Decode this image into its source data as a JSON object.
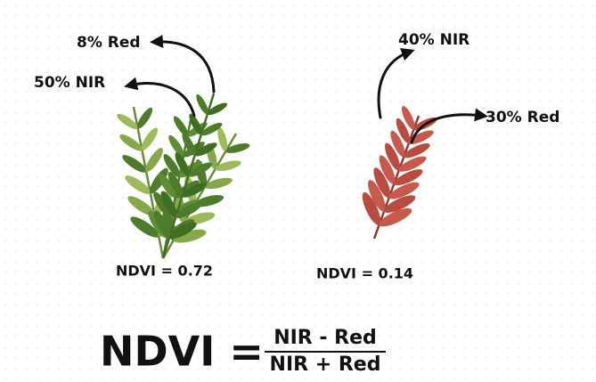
{
  "plants": [
    {
      "red_label": "8% Red",
      "nir_label": "50%  NIR",
      "ndvi_label": "NDVI = 0.72"
    },
    {
      "nir_label": "40%  NIR",
      "red_label": "30% Red",
      "ndvi_label": "NDVI = 0.14"
    }
  ],
  "formula": {
    "lhs": "NDVI =",
    "numerator": "NIR - Red",
    "denominator": "NIR + Red"
  }
}
